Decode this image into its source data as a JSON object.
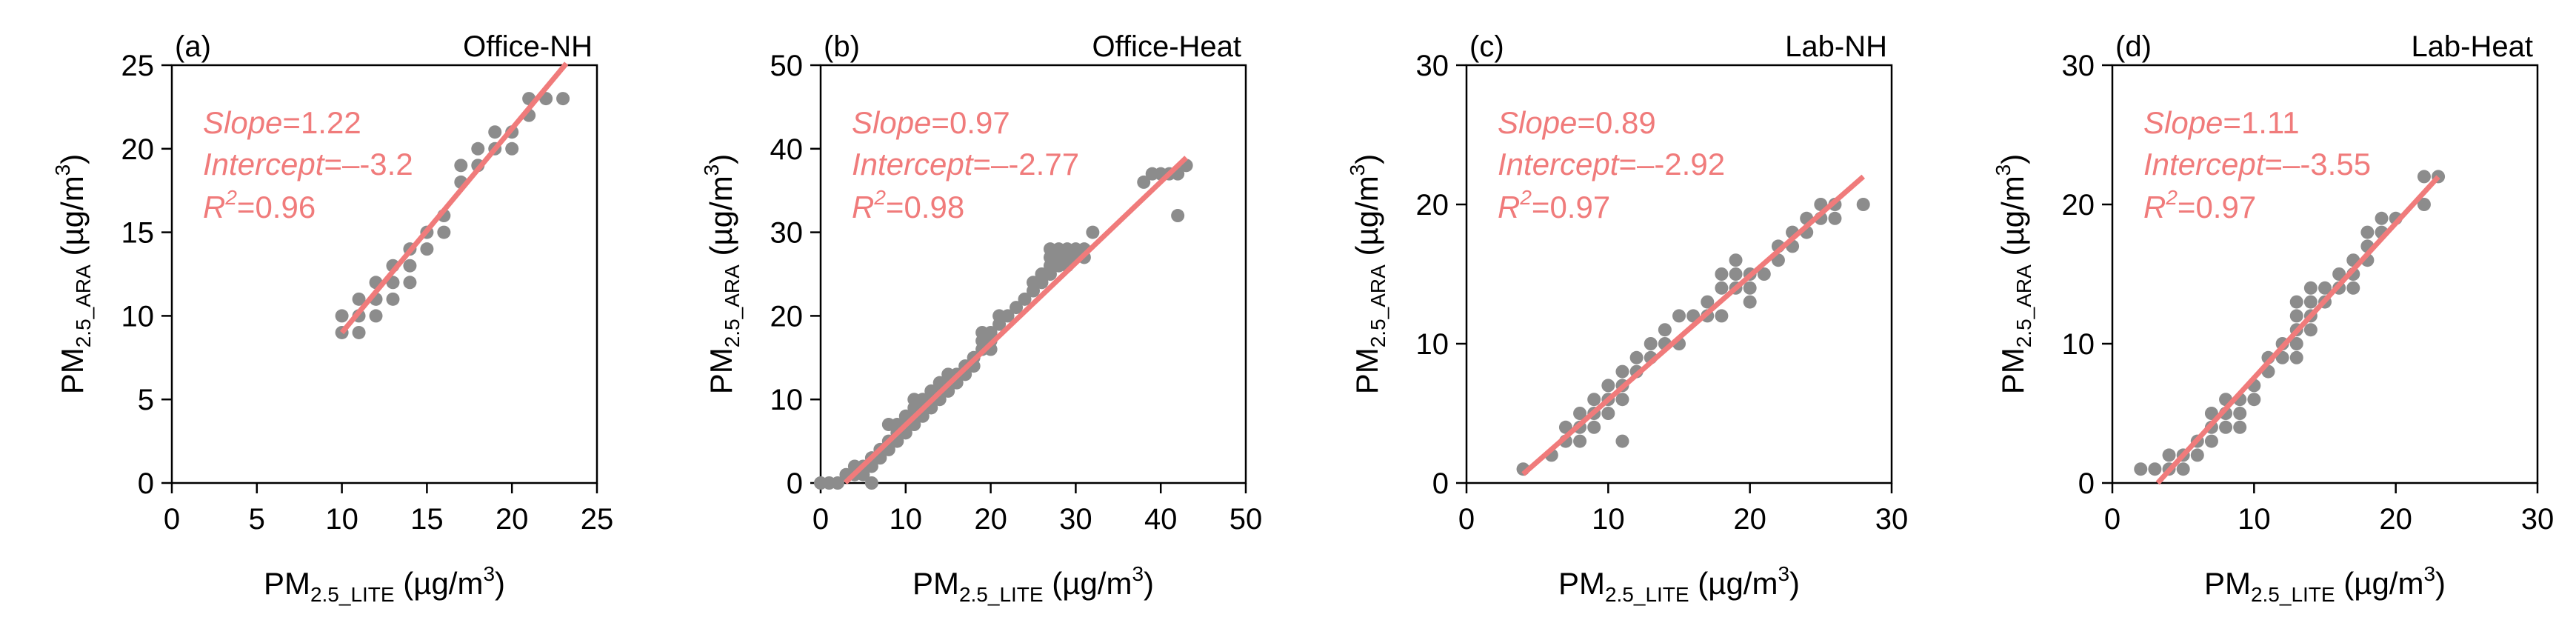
{
  "colors": {
    "points": "#8c8c8c",
    "fit_line": "#f07b7b",
    "stats_text": "#f07b7b",
    "axes": "#000000"
  },
  "chart_data": [
    {
      "type": "scatter",
      "panel_label": "(a)",
      "title": "Office-NH",
      "xlabel": {
        "base": "PM",
        "sub": "2.5_LITE",
        "unit_pre": " (µg/m",
        "unit_sup": "3",
        "unit_post": ")"
      },
      "ylabel": {
        "base": "PM",
        "sub": "2.5_ARA",
        "unit_pre": " (µg/m",
        "unit_sup": "3",
        "unit_post": ")"
      },
      "xlim": [
        0,
        25
      ],
      "ylim": [
        0,
        25
      ],
      "xticks": [
        "0",
        "5",
        "10",
        "15",
        "20",
        "25"
      ],
      "xtick_values": [
        0,
        5,
        10,
        15,
        20,
        25
      ],
      "yticks": [
        "0",
        "5",
        "10",
        "15",
        "20",
        "25"
      ],
      "ytick_values": [
        0,
        5,
        10,
        15,
        20,
        25
      ],
      "stats": {
        "slope_label": "Slope",
        "slope_value": "=1.22",
        "intercept_label": "Intercept",
        "intercept_value": "=–-3.2",
        "r2_label": "R",
        "r2_sup": "2",
        "r2_value": "=0.96"
      },
      "fit": {
        "slope": 1.22,
        "intercept": -3.2,
        "x_range": [
          10,
          23.2
        ]
      },
      "points": [
        [
          10,
          10
        ],
        [
          10,
          9
        ],
        [
          11,
          9
        ],
        [
          11,
          10
        ],
        [
          11,
          11
        ],
        [
          12,
          10
        ],
        [
          12,
          11
        ],
        [
          12,
          12
        ],
        [
          13,
          11
        ],
        [
          13,
          12
        ],
        [
          13,
          13
        ],
        [
          14,
          12
        ],
        [
          14,
          13
        ],
        [
          14,
          14
        ],
        [
          15,
          14
        ],
        [
          15,
          15
        ],
        [
          16,
          15
        ],
        [
          16,
          16
        ],
        [
          17,
          18
        ],
        [
          17,
          19
        ],
        [
          18,
          19
        ],
        [
          18,
          20
        ],
        [
          19,
          20
        ],
        [
          19,
          21
        ],
        [
          20,
          20
        ],
        [
          20,
          21
        ],
        [
          21,
          22
        ],
        [
          21,
          23
        ],
        [
          22,
          23
        ],
        [
          23,
          23
        ]
      ]
    },
    {
      "type": "scatter",
      "panel_label": "(b)",
      "title": "Office-Heat",
      "xlabel": {
        "base": "PM",
        "sub": "2.5_LITE",
        "unit_pre": " (µg/m",
        "unit_sup": "3",
        "unit_post": ")"
      },
      "ylabel": {
        "base": "PM",
        "sub": "2.5_ARA",
        "unit_pre": " (µg/m",
        "unit_sup": "3",
        "unit_post": ")"
      },
      "xlim": [
        0,
        50
      ],
      "ylim": [
        0,
        50
      ],
      "xticks": [
        "0",
        "10",
        "20",
        "30",
        "40",
        "50"
      ],
      "xtick_values": [
        0,
        10,
        20,
        30,
        40,
        50
      ],
      "yticks": [
        "0",
        "10",
        "20",
        "30",
        "40",
        "50"
      ],
      "ytick_values": [
        0,
        10,
        20,
        30,
        40,
        50
      ],
      "stats": {
        "slope_label": "Slope",
        "slope_value": "=0.97",
        "intercept_label": "Intercept",
        "intercept_value": "=–-2.77",
        "r2_label": "R",
        "r2_sup": "2",
        "r2_value": "=0.98"
      },
      "fit": {
        "slope": 0.97,
        "intercept": -2.77,
        "x_range": [
          2.9,
          43
        ]
      },
      "points": [
        [
          0,
          0
        ],
        [
          1,
          0
        ],
        [
          2,
          0
        ],
        [
          3,
          1
        ],
        [
          4,
          1
        ],
        [
          4,
          2
        ],
        [
          5,
          1
        ],
        [
          5,
          2
        ],
        [
          6,
          2
        ],
        [
          6,
          0
        ],
        [
          6,
          3
        ],
        [
          7,
          3
        ],
        [
          7,
          4
        ],
        [
          8,
          4
        ],
        [
          8,
          5
        ],
        [
          8,
          7
        ],
        [
          9,
          5
        ],
        [
          9,
          6
        ],
        [
          9,
          7
        ],
        [
          10,
          6
        ],
        [
          10,
          7
        ],
        [
          10,
          8
        ],
        [
          11,
          7
        ],
        [
          11,
          8
        ],
        [
          11,
          9
        ],
        [
          11,
          10
        ],
        [
          12,
          8
        ],
        [
          12,
          9
        ],
        [
          12,
          10
        ],
        [
          13,
          9
        ],
        [
          13,
          10
        ],
        [
          13,
          11
        ],
        [
          14,
          10
        ],
        [
          14,
          11
        ],
        [
          14,
          12
        ],
        [
          15,
          11
        ],
        [
          15,
          12
        ],
        [
          15,
          13
        ],
        [
          16,
          12
        ],
        [
          16,
          13
        ],
        [
          17,
          13
        ],
        [
          17,
          14
        ],
        [
          18,
          14
        ],
        [
          18,
          15
        ],
        [
          19,
          16
        ],
        [
          19,
          17
        ],
        [
          19,
          18
        ],
        [
          20,
          16
        ],
        [
          20,
          17
        ],
        [
          20,
          18
        ],
        [
          21,
          19
        ],
        [
          21,
          20
        ],
        [
          22,
          20
        ],
        [
          23,
          21
        ],
        [
          24,
          22
        ],
        [
          25,
          23
        ],
        [
          25,
          24
        ],
        [
          26,
          24
        ],
        [
          26,
          25
        ],
        [
          27,
          25
        ],
        [
          27,
          26
        ],
        [
          27,
          27
        ],
        [
          27,
          28
        ],
        [
          28,
          26
        ],
        [
          28,
          27
        ],
        [
          28,
          28
        ],
        [
          29,
          26
        ],
        [
          29,
          27
        ],
        [
          29,
          28
        ],
        [
          30,
          27
        ],
        [
          30,
          28
        ],
        [
          31,
          27
        ],
        [
          31,
          28
        ],
        [
          32,
          30
        ],
        [
          38,
          36
        ],
        [
          39,
          37
        ],
        [
          40,
          37
        ],
        [
          41,
          37
        ],
        [
          42,
          32
        ],
        [
          42,
          37
        ],
        [
          43,
          38
        ]
      ]
    },
    {
      "type": "scatter",
      "panel_label": "(c)",
      "title": "Lab-NH",
      "xlabel": {
        "base": "PM",
        "sub": "2.5_LITE",
        "unit_pre": " (µg/m",
        "unit_sup": "3",
        "unit_post": ")"
      },
      "ylabel": {
        "base": "PM",
        "sub": "2.5_ARA",
        "unit_pre": " (µg/m",
        "unit_sup": "3",
        "unit_post": ")"
      },
      "xlim": [
        0,
        30
      ],
      "ylim": [
        0,
        30
      ],
      "xticks": [
        "0",
        "10",
        "20",
        "30"
      ],
      "xtick_values": [
        0,
        10,
        20,
        30
      ],
      "yticks": [
        "0",
        "10",
        "20",
        "30"
      ],
      "ytick_values": [
        0,
        10,
        20,
        30
      ],
      "stats": {
        "slope_label": "Slope",
        "slope_value": "=0.89",
        "intercept_label": "Intercept",
        "intercept_value": "=–-2.92",
        "r2_label": "R",
        "r2_sup": "2",
        "r2_value": "=0.97"
      },
      "fit": {
        "slope": 0.89,
        "intercept": -2.92,
        "x_range": [
          4,
          28
        ]
      },
      "points": [
        [
          4,
          1
        ],
        [
          6,
          2
        ],
        [
          7,
          3
        ],
        [
          7,
          4
        ],
        [
          8,
          3
        ],
        [
          8,
          4
        ],
        [
          8,
          5
        ],
        [
          9,
          4
        ],
        [
          9,
          5
        ],
        [
          9,
          6
        ],
        [
          10,
          5
        ],
        [
          10,
          6
        ],
        [
          10,
          7
        ],
        [
          11,
          3
        ],
        [
          11,
          6
        ],
        [
          11,
          7
        ],
        [
          11,
          8
        ],
        [
          12,
          8
        ],
        [
          12,
          9
        ],
        [
          13,
          9
        ],
        [
          13,
          10
        ],
        [
          14,
          10
        ],
        [
          14,
          11
        ],
        [
          15,
          10
        ],
        [
          15,
          12
        ],
        [
          16,
          12
        ],
        [
          17,
          12
        ],
        [
          17,
          13
        ],
        [
          18,
          12
        ],
        [
          18,
          14
        ],
        [
          18,
          15
        ],
        [
          19,
          14
        ],
        [
          19,
          15
        ],
        [
          19,
          16
        ],
        [
          20,
          13
        ],
        [
          20,
          14
        ],
        [
          20,
          15
        ],
        [
          21,
          15
        ],
        [
          22,
          16
        ],
        [
          22,
          17
        ],
        [
          23,
          17
        ],
        [
          23,
          18
        ],
        [
          24,
          18
        ],
        [
          24,
          19
        ],
        [
          25,
          19
        ],
        [
          25,
          20
        ],
        [
          26,
          19
        ],
        [
          26,
          20
        ],
        [
          28,
          20
        ]
      ]
    },
    {
      "type": "scatter",
      "panel_label": "(d)",
      "title": "Lab-Heat",
      "xlabel": {
        "base": "PM",
        "sub": "2.5_LITE",
        "unit_pre": " (µg/m",
        "unit_sup": "3",
        "unit_post": ")"
      },
      "ylabel": {
        "base": "PM",
        "sub": "2.5_ARA",
        "unit_pre": " (µg/m",
        "unit_sup": "3",
        "unit_post": ")"
      },
      "xlim": [
        0,
        30
      ],
      "ylim": [
        0,
        30
      ],
      "xticks": [
        "0",
        "10",
        "20",
        "30"
      ],
      "xtick_values": [
        0,
        10,
        20,
        30
      ],
      "yticks": [
        "0",
        "10",
        "20",
        "30"
      ],
      "ytick_values": [
        0,
        10,
        20,
        30
      ],
      "stats": {
        "slope_label": "Slope",
        "slope_value": "=1.11",
        "intercept_label": "Intercept",
        "intercept_value": "=–-3.55",
        "r2_label": "R",
        "r2_sup": "2",
        "r2_value": "=0.97"
      },
      "fit": {
        "slope": 1.11,
        "intercept": -3.55,
        "x_range": [
          3.2,
          23
        ]
      },
      "points": [
        [
          2,
          1
        ],
        [
          3,
          1
        ],
        [
          4,
          1
        ],
        [
          4,
          2
        ],
        [
          5,
          1
        ],
        [
          5,
          2
        ],
        [
          6,
          2
        ],
        [
          6,
          3
        ],
        [
          7,
          3
        ],
        [
          7,
          4
        ],
        [
          7,
          5
        ],
        [
          8,
          4
        ],
        [
          8,
          5
        ],
        [
          8,
          6
        ],
        [
          9,
          4
        ],
        [
          9,
          5
        ],
        [
          9,
          6
        ],
        [
          10,
          6
        ],
        [
          10,
          7
        ],
        [
          11,
          8
        ],
        [
          11,
          9
        ],
        [
          12,
          9
        ],
        [
          12,
          10
        ],
        [
          13,
          9
        ],
        [
          13,
          10
        ],
        [
          13,
          11
        ],
        [
          13,
          12
        ],
        [
          13,
          13
        ],
        [
          14,
          11
        ],
        [
          14,
          12
        ],
        [
          14,
          13
        ],
        [
          14,
          14
        ],
        [
          15,
          13
        ],
        [
          15,
          14
        ],
        [
          16,
          14
        ],
        [
          16,
          15
        ],
        [
          17,
          14
        ],
        [
          17,
          15
        ],
        [
          17,
          16
        ],
        [
          18,
          16
        ],
        [
          18,
          17
        ],
        [
          18,
          18
        ],
        [
          19,
          18
        ],
        [
          19,
          19
        ],
        [
          20,
          19
        ],
        [
          22,
          20
        ],
        [
          22,
          22
        ],
        [
          23,
          22
        ]
      ]
    }
  ]
}
